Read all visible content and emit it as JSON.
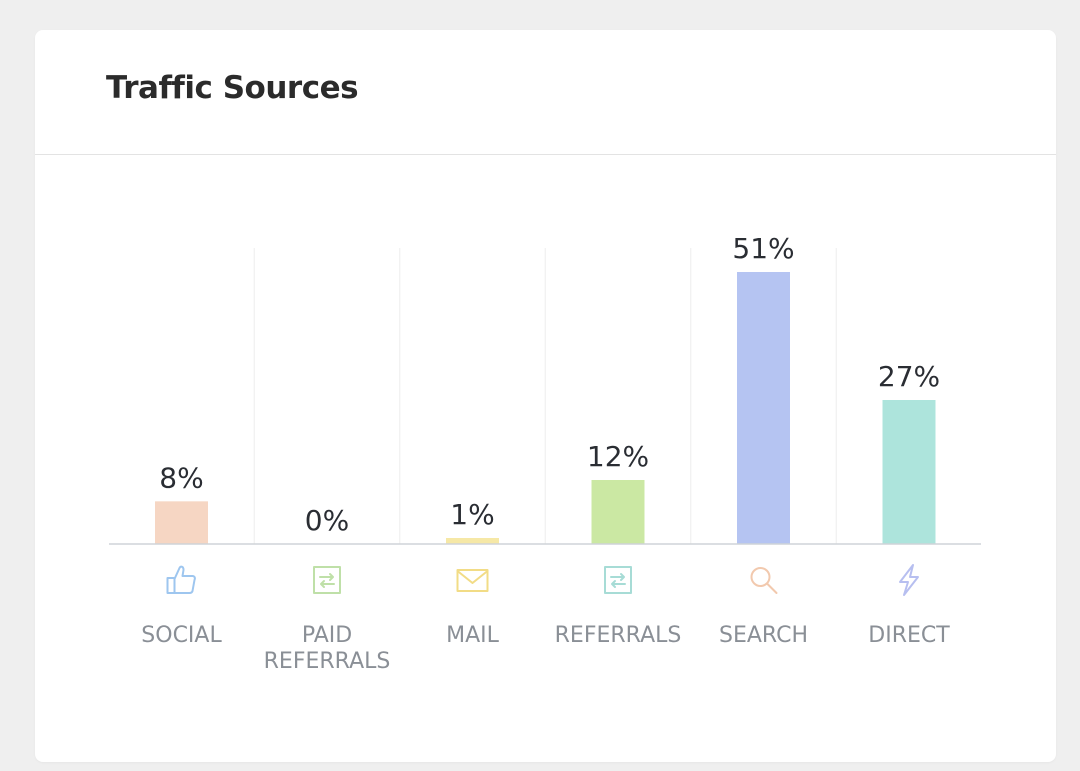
{
  "card": {
    "title": "Traffic Sources"
  },
  "chart_data": {
    "type": "bar",
    "categories": [
      "SOCIAL",
      "PAID\nREFERRALS",
      "MAIL",
      "REFERRALS",
      "SEARCH",
      "DIRECT"
    ],
    "values": [
      8,
      0,
      1,
      12,
      51,
      27
    ],
    "value_labels": [
      "8%",
      "0%",
      "1%",
      "12%",
      "51%",
      "27%"
    ],
    "colors": [
      "#f6d6c3",
      "#d7eecb",
      "#f6e8a6",
      "#cbe8a3",
      "#b5c4f2",
      "#ade4dc"
    ],
    "icons": [
      "thumbs-up-icon",
      "swap-arrows-icon",
      "mail-icon",
      "swap-arrows-icon",
      "search-icon",
      "lightning-icon"
    ],
    "icon_colors": [
      "#9ec6ef",
      "#bfe0a8",
      "#f2dc86",
      "#a7dcd6",
      "#f2c9ae",
      "#b7bff0"
    ],
    "ylim": [
      0,
      51
    ],
    "grid": true,
    "legend": "none"
  }
}
